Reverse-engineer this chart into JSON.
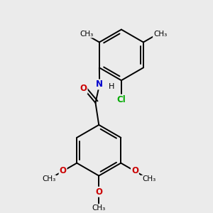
{
  "background_color": "#ebebeb",
  "bond_color": "#000000",
  "bond_width": 1.4,
  "atom_labels": {
    "Cl": {
      "color": "#00aa00",
      "fontsize": 8.5,
      "fontweight": "bold"
    },
    "O": {
      "color": "#cc0000",
      "fontsize": 8.5,
      "fontweight": "bold"
    },
    "N": {
      "color": "#0000cc",
      "fontsize": 8.5,
      "fontweight": "bold"
    },
    "H": {
      "color": "#000000",
      "fontsize": 8.0,
      "fontweight": "normal"
    }
  },
  "methoxy_labels": {
    "O": "#cc0000",
    "me": "#000000"
  },
  "figsize": [
    3.0,
    3.0
  ],
  "dpi": 100,
  "xlim": [
    -1.6,
    1.8
  ],
  "ylim": [
    -2.6,
    2.2
  ]
}
